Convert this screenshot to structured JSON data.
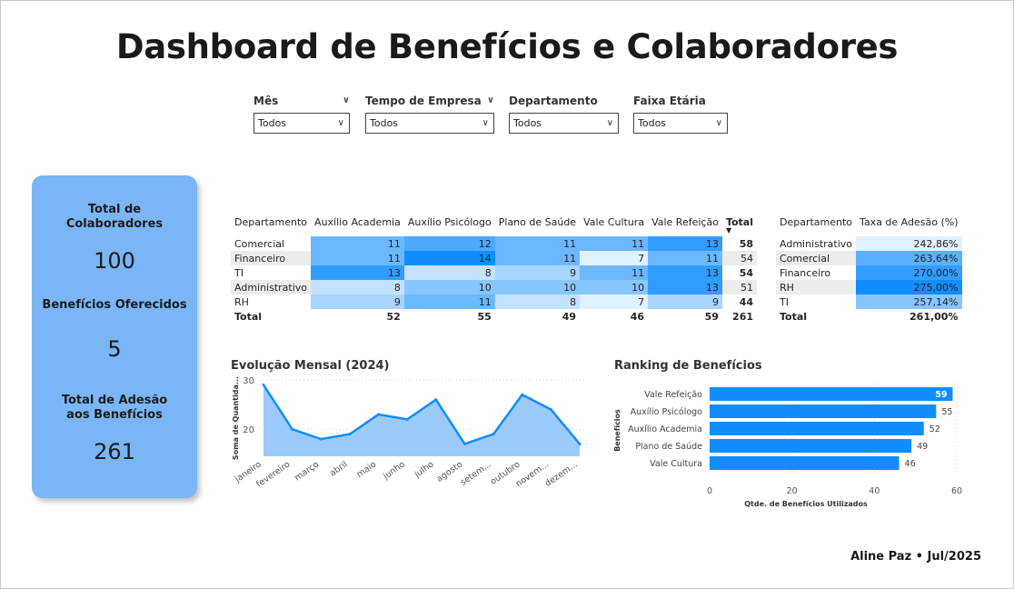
{
  "title": "Dashboard de Benefícios e Colaboradores",
  "filters": [
    {
      "label": "Mês",
      "value": "Todos"
    },
    {
      "label": "Tempo de Empresa",
      "value": "Todos"
    },
    {
      "label": "Departamento",
      "value": "Todos"
    },
    {
      "label": "Faixa Etária",
      "value": "Todos"
    }
  ],
  "kpis": {
    "total_colaboradores_label": "Total de Colaboradores",
    "total_colaboradores": "100",
    "beneficios_label": "Benefícios Oferecidos",
    "beneficios": "5",
    "adesao_label": "Total de Adesão aos Benefícios",
    "adesao": "261"
  },
  "matrix": {
    "headers": [
      "Departamento",
      "Auxílio Academia",
      "Auxílio Psicólogo",
      "Plano de Saúde",
      "Vale Cultura",
      "Vale Refeição",
      "Total"
    ],
    "rows": [
      {
        "dept": "Comercial",
        "values": [
          11,
          12,
          11,
          11,
          13
        ],
        "total": 58
      },
      {
        "dept": "Financeiro",
        "values": [
          11,
          14,
          11,
          7,
          11
        ],
        "total": 54
      },
      {
        "dept": "TI",
        "values": [
          13,
          8,
          9,
          11,
          13
        ],
        "total": 54
      },
      {
        "dept": "Administrativo",
        "values": [
          8,
          10,
          10,
          10,
          13
        ],
        "total": 51
      },
      {
        "dept": "RH",
        "values": [
          9,
          11,
          8,
          7,
          9
        ],
        "total": 44
      }
    ],
    "total_row": {
      "label": "Total",
      "values": [
        52,
        55,
        49,
        46,
        59
      ],
      "total": 261
    }
  },
  "adesao_table": {
    "headers": [
      "Departamento",
      "Taxa de Adesão (%)"
    ],
    "rows": [
      {
        "dept": "Administrativo",
        "rate": "242,86%"
      },
      {
        "dept": "Comercial",
        "rate": "263,64%"
      },
      {
        "dept": "Financeiro",
        "rate": "270,00%"
      },
      {
        "dept": "RH",
        "rate": "275,00%"
      },
      {
        "dept": "TI",
        "rate": "257,14%"
      }
    ],
    "total_row": {
      "label": "Total",
      "rate": "261,00%"
    }
  },
  "chart_data": [
    {
      "type": "area",
      "title": "Evolução Mensal (2024)",
      "ylabel": "Soma de Quantida...",
      "xlabel": "",
      "x": [
        "janeiro",
        "fevereiro",
        "março",
        "abril",
        "maio",
        "junho",
        "julho",
        "agosto",
        "setem...",
        "outubro",
        "novem...",
        "dezem..."
      ],
      "y": [
        29,
        20,
        18,
        19,
        23,
        22,
        26,
        17,
        19,
        27,
        24,
        17
      ],
      "yticks": [
        20,
        30
      ],
      "ylim": [
        14.5,
        30
      ],
      "color": "#118dff",
      "fill": "#9ccbfb",
      "grid": true
    },
    {
      "type": "bar",
      "orientation": "horizontal",
      "title": "Ranking de Benefícios",
      "ylabel": "Benefícios",
      "xlabel": "Qtde. de Benefícios Utilizados",
      "categories": [
        "Vale Refeição",
        "Auxílio Psicólogo",
        "Auxílio Academia",
        "Plano de Saúde",
        "Vale Cultura"
      ],
      "values": [
        59,
        55,
        52,
        49,
        46
      ],
      "xticks": [
        0,
        20,
        40,
        60
      ],
      "xlim": [
        0,
        60
      ],
      "color": "#118dff",
      "grid": true
    }
  ],
  "footer": "Aline Paz • Jul/2025",
  "colors": {
    "accent": "#118dff",
    "card": "#7ab5f5"
  }
}
